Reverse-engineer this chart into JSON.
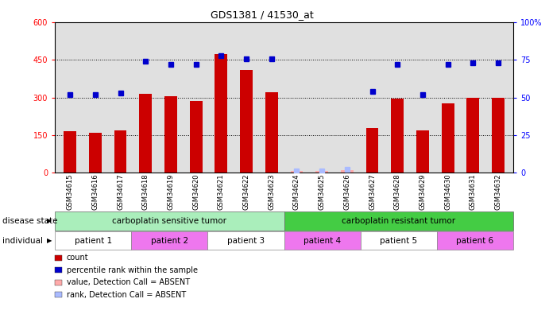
{
  "title": "GDS1381 / 41530_at",
  "samples": [
    "GSM34615",
    "GSM34616",
    "GSM34617",
    "GSM34618",
    "GSM34619",
    "GSM34620",
    "GSM34621",
    "GSM34622",
    "GSM34623",
    "GSM34624",
    "GSM34625",
    "GSM34626",
    "GSM34627",
    "GSM34628",
    "GSM34629",
    "GSM34630",
    "GSM34631",
    "GSM34632"
  ],
  "bar_values": [
    165,
    158,
    168,
    315,
    305,
    285,
    475,
    410,
    320,
    5,
    5,
    8,
    178,
    295,
    168,
    275,
    300,
    300
  ],
  "bar_absent": [
    false,
    false,
    false,
    false,
    false,
    false,
    false,
    false,
    false,
    true,
    true,
    true,
    false,
    false,
    false,
    false,
    false,
    false
  ],
  "dot_values": [
    52,
    52,
    53,
    74,
    72,
    72,
    78,
    76,
    76,
    1,
    1,
    2,
    54,
    72,
    52,
    72,
    73,
    73
  ],
  "dot_absent": [
    false,
    false,
    false,
    false,
    false,
    false,
    false,
    false,
    false,
    true,
    true,
    true,
    false,
    false,
    false,
    false,
    false,
    false
  ],
  "bar_color": "#cc0000",
  "bar_absent_color": "#ffaaaa",
  "dot_color": "#0000cc",
  "dot_absent_color": "#aabbff",
  "left_ylim": [
    0,
    600
  ],
  "right_ylim": [
    0,
    100
  ],
  "left_yticks": [
    0,
    150,
    300,
    450,
    600
  ],
  "right_yticks": [
    0,
    25,
    50,
    75,
    100
  ],
  "right_yticklabels": [
    "0",
    "25",
    "50",
    "75",
    "100%"
  ],
  "hlines": [
    150,
    300,
    450
  ],
  "disease_state": [
    {
      "label": "carboplatin sensitive tumor",
      "start": 0,
      "end": 9,
      "color": "#aaeebb"
    },
    {
      "label": "carboplatin resistant tumor",
      "start": 9,
      "end": 18,
      "color": "#44cc44"
    }
  ],
  "individuals": [
    {
      "label": "patient 1",
      "start": 0,
      "end": 3,
      "color": "#ffffff"
    },
    {
      "label": "patient 2",
      "start": 3,
      "end": 6,
      "color": "#ee77ee"
    },
    {
      "label": "patient 3",
      "start": 6,
      "end": 9,
      "color": "#ffffff"
    },
    {
      "label": "patient 4",
      "start": 9,
      "end": 12,
      "color": "#ee77ee"
    },
    {
      "label": "patient 5",
      "start": 12,
      "end": 15,
      "color": "#ffffff"
    },
    {
      "label": "patient 6",
      "start": 15,
      "end": 18,
      "color": "#ee77ee"
    }
  ],
  "legend": [
    {
      "label": "count",
      "color": "#cc0000"
    },
    {
      "label": "percentile rank within the sample",
      "color": "#0000cc"
    },
    {
      "label": "value, Detection Call = ABSENT",
      "color": "#ffaaaa"
    },
    {
      "label": "rank, Detection Call = ABSENT",
      "color": "#aabbff"
    }
  ],
  "background_color": "#ffffff",
  "plot_bg": "#e0e0e0"
}
